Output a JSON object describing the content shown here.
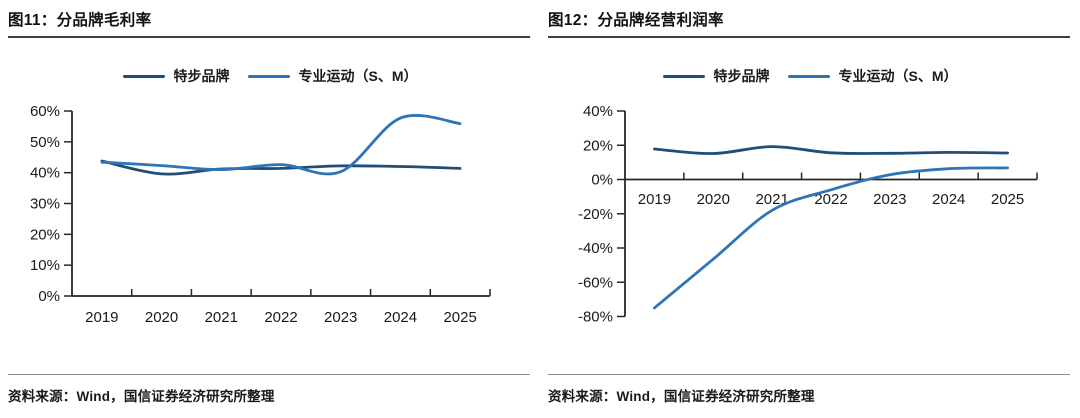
{
  "sources": [
    "资料来源：Wind，国信证券经济研究所整理",
    "资料来源：Wind，国信证券经济研究所整理"
  ],
  "colors": {
    "series_dark": "#1f4e79",
    "series_light": "#2e75b6",
    "axis": "#262626",
    "label": "#1a1a1a"
  },
  "chart_data": [
    {
      "type": "line",
      "title": "图11：分品牌毛利率",
      "categories": [
        "2019",
        "2020",
        "2021",
        "2022",
        "2023",
        "2024",
        "2025"
      ],
      "series": [
        {
          "key": "xtep-brand",
          "name": "特步品牌",
          "color": "#1f4e79",
          "values": [
            43.8,
            39.6,
            41.2,
            41.4,
            42.2,
            42.0,
            41.4
          ]
        },
        {
          "key": "pro-sports",
          "name": "专业运动（S、M）",
          "color": "#2e75b6",
          "values": [
            43.4,
            42.3,
            41.0,
            42.6,
            40.3,
            57.7,
            55.9
          ]
        }
      ],
      "ylim": [
        0,
        60
      ],
      "ytick_step": 10,
      "yticklabel_suffix": "%",
      "xlabel": "",
      "ylabel": "",
      "grid": false,
      "legend_position": "top",
      "smooth": true
    },
    {
      "type": "line",
      "title": "图12：分品牌经营利润率",
      "categories": [
        "2019",
        "2020",
        "2021",
        "2022",
        "2023",
        "2024",
        "2025"
      ],
      "series": [
        {
          "key": "xtep-brand",
          "name": "特步品牌",
          "color": "#1f4e79",
          "values": [
            17.8,
            15.2,
            19.2,
            15.6,
            15.3,
            15.8,
            15.5
          ]
        },
        {
          "key": "pro-sports",
          "name": "专业运动（S、M）",
          "color": "#2e75b6",
          "values": [
            -75.0,
            -46.5,
            -18.0,
            -6.0,
            2.8,
            6.3,
            6.8
          ]
        }
      ],
      "ylim": [
        -80,
        40
      ],
      "ytick_step": 20,
      "yticklabel_suffix": "%",
      "xlabel": "",
      "ylabel": "",
      "grid": false,
      "legend_position": "top",
      "smooth": true
    }
  ]
}
